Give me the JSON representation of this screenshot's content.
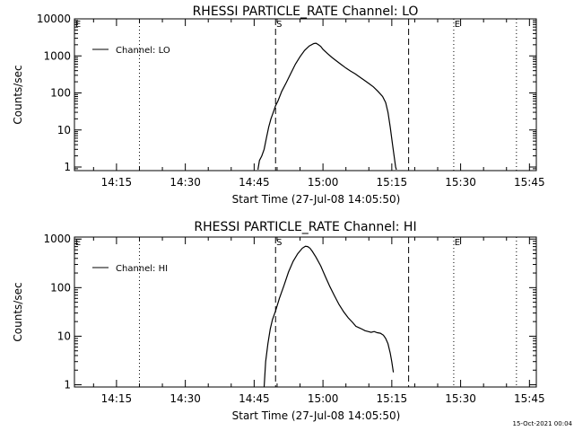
{
  "footer_timestamp": "15-Oct-2021 00:04",
  "chart_data": [
    {
      "type": "line",
      "title": "RHESSI PARTICLE_RATE Channel: LO",
      "xlabel": "Start Time (27-Jul-08 14:05:50)",
      "ylabel": "Counts/sec",
      "yscale": "log",
      "ylim": [
        0.8,
        10000
      ],
      "xlim": [
        "14:05:50",
        "15:46:30"
      ],
      "xticks": [
        "14:15",
        "14:30",
        "14:45",
        "15:00",
        "15:15",
        "15:30",
        "15:45"
      ],
      "yticks": [
        "1",
        "10",
        "100",
        "1000",
        "10000"
      ],
      "legend": {
        "position": "top-left",
        "entries": [
          "Channel: LO"
        ]
      },
      "markers": [
        {
          "label": "E",
          "time": "14:05:50",
          "style": "dotted"
        },
        {
          "label": "",
          "time": "14:20:00",
          "style": "dotted"
        },
        {
          "label": "S",
          "time": "14:49:40",
          "style": "dashed"
        },
        {
          "label": "",
          "time": "15:18:40",
          "style": "dashed"
        },
        {
          "label": "E",
          "time": "15:28:30",
          "style": "dotted"
        },
        {
          "label": "",
          "time": "15:42:10",
          "style": "dotted"
        }
      ],
      "series": [
        {
          "name": "Channel: LO",
          "x": [
            "14:45:50",
            "14:46:10",
            "14:46:40",
            "14:47:10",
            "14:47:40",
            "14:48:10",
            "14:48:40",
            "14:49:10",
            "14:49:40",
            "14:50:10",
            "14:51:00",
            "14:52:00",
            "14:53:00",
            "14:54:00",
            "14:55:00",
            "14:56:00",
            "14:57:00",
            "14:58:00",
            "14:58:30",
            "14:59:00",
            "14:59:30",
            "15:00:00",
            "15:01:00",
            "15:02:00",
            "15:03:00",
            "15:04:00",
            "15:05:00",
            "15:06:00",
            "15:07:00",
            "15:08:00",
            "15:09:00",
            "15:10:00",
            "15:11:00",
            "15:12:00",
            "15:13:00",
            "15:13:40",
            "15:14:10",
            "15:14:40",
            "15:15:10",
            "15:15:30",
            "15:15:50",
            "15:16:00"
          ],
          "y": [
            0.85,
            1.5,
            2,
            3,
            6,
            12,
            20,
            30,
            45,
            60,
            110,
            190,
            340,
            600,
            950,
            1400,
            1850,
            2150,
            2200,
            2000,
            1800,
            1500,
            1150,
            900,
            720,
            580,
            470,
            390,
            330,
            270,
            220,
            180,
            145,
            110,
            80,
            55,
            30,
            12,
            4,
            2,
            1,
            0.85
          ]
        }
      ]
    },
    {
      "type": "line",
      "title": "RHESSI PARTICLE_RATE Channel: HI",
      "xlabel": "Start Time (27-Jul-08 14:05:50)",
      "ylabel": "Counts/sec",
      "yscale": "log",
      "ylim": [
        0.9,
        1100
      ],
      "xlim": [
        "14:05:50",
        "15:46:30"
      ],
      "xticks": [
        "14:15",
        "14:30",
        "14:45",
        "15:00",
        "15:15",
        "15:30",
        "15:45"
      ],
      "yticks": [
        "1",
        "10",
        "100",
        "1000"
      ],
      "legend": {
        "position": "top-left",
        "entries": [
          "Channel: HI"
        ]
      },
      "markers": [
        {
          "label": "E",
          "time": "14:05:50",
          "style": "dotted"
        },
        {
          "label": "",
          "time": "14:20:00",
          "style": "dotted"
        },
        {
          "label": "S",
          "time": "14:49:40",
          "style": "dashed"
        },
        {
          "label": "",
          "time": "15:18:40",
          "style": "dashed"
        },
        {
          "label": "E",
          "time": "15:28:30",
          "style": "dotted"
        },
        {
          "label": "",
          "time": "15:42:10",
          "style": "dotted"
        }
      ],
      "series": [
        {
          "name": "Channel: HI",
          "x": [
            "14:47:10",
            "14:47:30",
            "14:48:00",
            "14:48:30",
            "14:49:00",
            "14:49:40",
            "14:50:30",
            "14:51:30",
            "14:52:30",
            "14:53:30",
            "14:54:30",
            "14:55:30",
            "14:56:10",
            "14:56:40",
            "14:57:10",
            "14:57:40",
            "14:58:30",
            "14:59:30",
            "15:00:30",
            "15:01:30",
            "15:02:30",
            "15:03:30",
            "15:04:30",
            "15:05:30",
            "15:06:30",
            "15:07:10",
            "15:07:50",
            "15:08:30",
            "15:09:10",
            "15:09:50",
            "15:10:30",
            "15:11:10",
            "15:11:50",
            "15:12:30",
            "15:13:10",
            "15:13:40",
            "15:14:10",
            "15:14:40",
            "15:15:00",
            "15:15:20"
          ],
          "y": [
            0.9,
            3,
            7,
            14,
            22,
            33,
            60,
            110,
            210,
            350,
            500,
            650,
            710,
            700,
            650,
            560,
            420,
            280,
            170,
            105,
            68,
            45,
            32,
            24,
            19,
            16,
            15,
            14,
            13,
            12.5,
            12,
            12.5,
            11.8,
            11.5,
            10.5,
            9,
            7,
            4.5,
            3,
            1.8
          ]
        }
      ]
    }
  ]
}
